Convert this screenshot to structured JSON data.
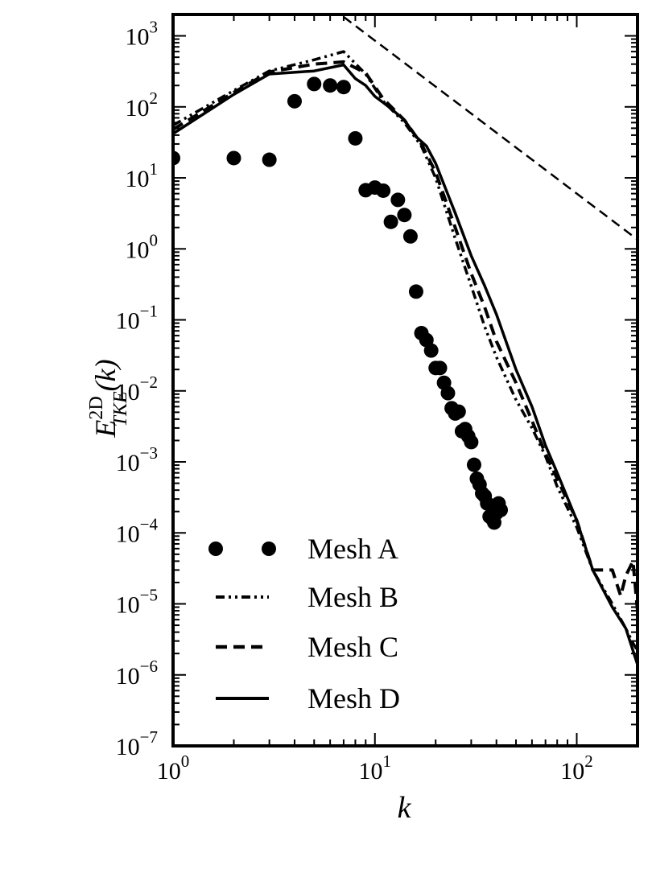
{
  "chart_data": {
    "type": "line",
    "xscale": "log",
    "yscale": "log",
    "xlim": [
      1,
      200
    ],
    "ylim": [
      1e-07,
      2000
    ],
    "xlabel": "k",
    "ylabel": {
      "base": "E",
      "sup": "2D",
      "sub": "TKE",
      "arg": "(k)"
    },
    "x_ticks": [
      {
        "value": 1,
        "base": "10",
        "exp": "0"
      },
      {
        "value": 10,
        "base": "10",
        "exp": "1"
      },
      {
        "value": 100,
        "base": "10",
        "exp": "2"
      }
    ],
    "y_ticks": [
      {
        "value": 1000,
        "base": "10",
        "exp": "3"
      },
      {
        "value": 100,
        "base": "10",
        "exp": "2"
      },
      {
        "value": 10,
        "base": "10",
        "exp": "1"
      },
      {
        "value": 1,
        "base": "10",
        "exp": "0"
      },
      {
        "value": 0.1,
        "base": "10",
        "exp": "−1"
      },
      {
        "value": 0.01,
        "base": "10",
        "exp": "−2"
      },
      {
        "value": 0.001,
        "base": "10",
        "exp": "−3"
      },
      {
        "value": 0.0001,
        "base": "10",
        "exp": "−4"
      },
      {
        "value": 1e-05,
        "base": "10",
        "exp": "−5"
      },
      {
        "value": 1e-06,
        "base": "10",
        "exp": "−6"
      },
      {
        "value": 1e-07,
        "base": "10",
        "exp": "−7"
      }
    ],
    "grid": false,
    "legend_position": "bottom-left",
    "reference_line": {
      "style": "dashed",
      "x": [
        7,
        200
      ],
      "y": [
        1850,
        1.35
      ]
    },
    "series": [
      {
        "name": "Mesh A",
        "style": "markers",
        "x": [
          1,
          2,
          3,
          4,
          5,
          6,
          7,
          8,
          9,
          10,
          11,
          12,
          13,
          14,
          15,
          16,
          17,
          18,
          19,
          20,
          21,
          22,
          23,
          24,
          25,
          26,
          27,
          28,
          29,
          30,
          31,
          32,
          33,
          34,
          35,
          36,
          37,
          38,
          39,
          40,
          41,
          42
        ],
        "y": [
          19,
          19,
          18,
          120,
          210,
          200,
          190,
          36,
          6.7,
          7.3,
          6.6,
          2.4,
          4.9,
          3.0,
          1.5,
          0.25,
          0.065,
          0.052,
          0.037,
          0.021,
          0.021,
          0.013,
          0.0093,
          0.0057,
          0.0048,
          0.0051,
          0.0027,
          0.0029,
          0.0023,
          0.0019,
          0.00091,
          0.00058,
          0.00048,
          0.00036,
          0.00033,
          0.00026,
          0.00017,
          0.00016,
          0.00014,
          0.00019,
          0.00026,
          0.00021
        ]
      },
      {
        "name": "Mesh B",
        "style": "dash-dot-dot",
        "x": [
          1,
          2,
          3,
          5,
          7,
          9,
          11,
          14,
          17,
          20,
          25,
          30,
          35,
          40,
          50,
          60,
          70,
          80,
          100,
          120,
          150,
          175,
          190,
          200
        ],
        "y": [
          55,
          170,
          320,
          460,
          600,
          290,
          120,
          60,
          28,
          10,
          1.4,
          0.3,
          0.08,
          0.03,
          0.0075,
          0.003,
          0.0012,
          0.00045,
          0.00012,
          3e-05,
          1e-05,
          4.5e-06,
          2.8e-06,
          2.2e-06
        ]
      },
      {
        "name": "Mesh C",
        "style": "dashed",
        "x": [
          1,
          2,
          3,
          5,
          7,
          9,
          11,
          14,
          17,
          20,
          25,
          30,
          35,
          40,
          50,
          60,
          70,
          80,
          100,
          120,
          150,
          165,
          175,
          190,
          200
        ],
        "y": [
          48,
          160,
          310,
          400,
          430,
          300,
          130,
          65,
          30,
          12,
          2.0,
          0.45,
          0.15,
          0.05,
          0.013,
          0.0038,
          0.0013,
          0.00058,
          0.00015,
          3e-05,
          3e-05,
          1.3e-05,
          2.5e-05,
          4e-05,
          8e-06
        ]
      },
      {
        "name": "Mesh D",
        "style": "solid",
        "x": [
          1,
          2,
          3,
          5,
          7,
          8,
          9,
          10,
          11,
          12,
          14,
          16,
          18,
          20,
          25,
          30,
          35,
          40,
          50,
          60,
          70,
          80,
          100,
          120,
          150,
          175,
          200
        ],
        "y": [
          42,
          150,
          290,
          320,
          390,
          250,
          200,
          140,
          115,
          95,
          65,
          38,
          28,
          16,
          3.2,
          0.8,
          0.3,
          0.12,
          0.02,
          0.006,
          0.0017,
          0.0007,
          0.00015,
          3e-05,
          9e-06,
          4.5e-06,
          1.4e-06
        ]
      }
    ]
  }
}
